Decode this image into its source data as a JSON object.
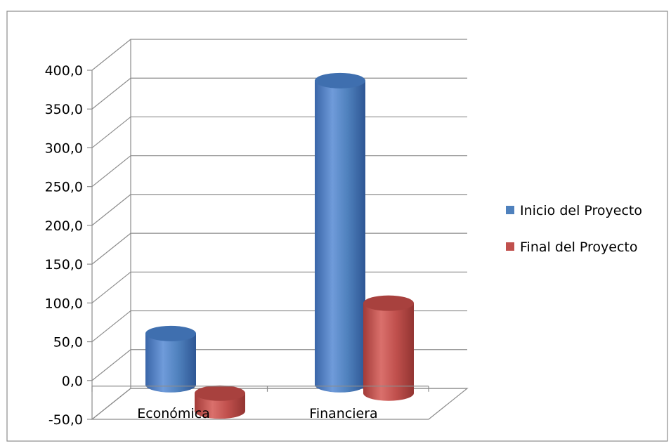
{
  "chart_data": {
    "type": "bar",
    "style": "3d-cylinder",
    "title": "",
    "xlabel": "",
    "ylabel": "",
    "categories": [
      "Económica",
      "Financiera"
    ],
    "series": [
      {
        "name": "Inicio del Proyecto",
        "color": "#4F81BD",
        "values": [
          66.0,
          392.0
        ]
      },
      {
        "name": "Final del Proyecto",
        "color": "#C0504D",
        "values": [
          -23.0,
          116.0
        ]
      }
    ],
    "ylim": [
      -50,
      400
    ],
    "yticks": [
      "-50,0",
      "0,0",
      "50,0",
      "100,0",
      "150,0",
      "200,0",
      "250,0",
      "300,0",
      "350,0",
      "400,0"
    ],
    "grid": true,
    "legend": "right"
  }
}
